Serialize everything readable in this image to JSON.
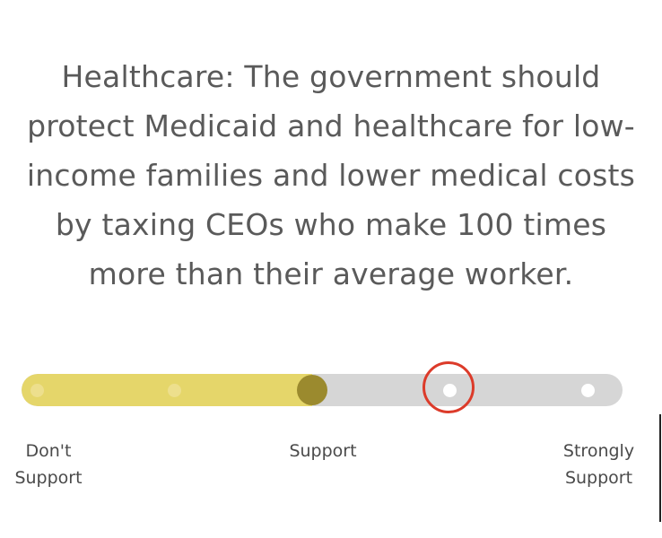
{
  "question": {
    "text": "Healthcare: The government should protect Medicaid and healthcare for low-income families and lower medical costs by taxing CEOs who make 100 times more than their average worker."
  },
  "slider": {
    "steps": 5,
    "selected_step": 3,
    "selected_label": "Support",
    "highlighted_step": 4,
    "colors": {
      "track": "#d6d6d6",
      "fill": "#e5d66a",
      "knob": "#9b8a2e",
      "highlight": "#dc3b2a"
    },
    "labels": {
      "left": "Don't\nSupport",
      "middle": "Support",
      "right": "Strongly\nSupport"
    }
  }
}
